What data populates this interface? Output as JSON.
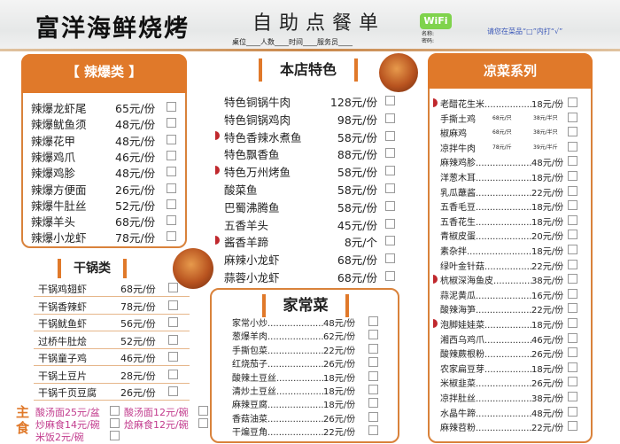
{
  "header": {
    "restaurant": "富洋海鲜烧烤",
    "subtitle": "自助点餐单",
    "form": "桌位____人数____时间____服务员____",
    "wifi": "WiFi",
    "wifi_name": "名称:",
    "wifi_password": "密码:",
    "hint": "请您在菜品“□”内打“√”"
  },
  "spicy": {
    "title": "【 辣爆类 】",
    "items": [
      {
        "name": "辣爆龙虾尾",
        "price": "65元/份"
      },
      {
        "name": "辣爆鱿鱼须",
        "price": "48元/份"
      },
      {
        "name": "辣爆花甲",
        "price": "48元/份"
      },
      {
        "name": "辣爆鸡爪",
        "price": "46元/份"
      },
      {
        "name": "辣爆鸡胗",
        "price": "48元/份"
      },
      {
        "name": "辣爆方便面",
        "price": "26元/份"
      },
      {
        "name": "辣爆牛肚丝",
        "price": "52元/份"
      },
      {
        "name": "辣爆羊头",
        "price": "68元/份"
      },
      {
        "name": "辣爆小龙虾",
        "price": "78元/份"
      }
    ]
  },
  "drypot": {
    "title": "干锅类",
    "items": [
      {
        "name": "干锅鸡翅虾",
        "price": "68元/份"
      },
      {
        "name": "干锅香辣虾",
        "price": "78元/份"
      },
      {
        "name": "干锅鱿鱼虾",
        "price": "56元/份"
      },
      {
        "name": "过桥牛肚烩",
        "price": "52元/份"
      },
      {
        "name": "干锅童子鸡",
        "price": "46元/份"
      },
      {
        "name": "干锅土豆片",
        "price": "28元/份"
      },
      {
        "name": "干锅千页豆腐",
        "price": "26元/份"
      }
    ]
  },
  "staple": {
    "title": "主食",
    "items": [
      "酸汤面25元/盆",
      "酸汤面12元/碗",
      "炒麻食14元/碗",
      "烩麻食12元/碗",
      "米饭2元/碗"
    ]
  },
  "special": {
    "title": "本店特色",
    "items": [
      {
        "name": "特色铜锅牛肉",
        "price": "128元/份",
        "spicy": false
      },
      {
        "name": "特色铜锅鸡肉",
        "price": "98元/份",
        "spicy": false
      },
      {
        "name": "特色香辣水煮鱼",
        "price": "58元/份",
        "spicy": true
      },
      {
        "name": "特色飘香鱼",
        "price": "88元/份",
        "spicy": false
      },
      {
        "name": "特色万州烤鱼",
        "price": "58元/份",
        "spicy": true
      },
      {
        "name": "酸菜鱼",
        "price": "58元/份",
        "spicy": false
      },
      {
        "name": "巴蜀沸腾鱼",
        "price": "58元/份",
        "spicy": false
      },
      {
        "name": "五香羊头",
        "price": "45元/份",
        "spicy": false
      },
      {
        "name": "酱香羊蹄",
        "price": "8元/个",
        "spicy": true
      },
      {
        "name": "麻辣小龙虾",
        "price": "68元/份",
        "spicy": false
      },
      {
        "name": "蒜蓉小龙虾",
        "price": "68元/份",
        "spicy": false
      }
    ]
  },
  "home": {
    "title": "家常菜",
    "items": [
      {
        "name": "家常小炒",
        "price": "48元/份"
      },
      {
        "name": "葱爆羊肉",
        "price": "62元/份"
      },
      {
        "name": "手撕包菜",
        "price": "22元/份"
      },
      {
        "name": "红烧茄子",
        "price": "26元/份"
      },
      {
        "name": "酸辣土豆丝",
        "price": "18元/份"
      },
      {
        "name": "清炒土豆丝",
        "price": "18元/份"
      },
      {
        "name": "麻辣豆腐",
        "price": "18元/份"
      },
      {
        "name": "香菇油菜",
        "price": "26元/份"
      },
      {
        "name": "干煸豆角",
        "price": "22元/份"
      }
    ]
  },
  "cold": {
    "title": "凉菜系列",
    "items": [
      {
        "name": "老醋花生米",
        "price": "18元/份",
        "spicy": true
      },
      {
        "name": "手撕土鸡",
        "price": "68元/只",
        "price2": "38元/半只"
      },
      {
        "name": "椒麻鸡",
        "price": "68元/只",
        "price2": "38元/半只"
      },
      {
        "name": "凉拌牛肉",
        "price": "78元/斤",
        "price2": "39元/半斤"
      },
      {
        "name": "麻辣鸡胗",
        "price": "48元/份"
      },
      {
        "name": "洋葱木耳",
        "price": "18元/份"
      },
      {
        "name": "乳瓜蘸酱",
        "price": "22元/份"
      },
      {
        "name": "五香毛豆",
        "price": "18元/份"
      },
      {
        "name": "五香花生",
        "price": "18元/份"
      },
      {
        "name": "青椒皮蛋",
        "price": "20元/份"
      },
      {
        "name": "素杂拌",
        "price": "18元/份"
      },
      {
        "name": "绿叶金针菇",
        "price": "22元/份"
      },
      {
        "name": "杭椒深海鱼皮",
        "price": "38元/份",
        "spicy": true
      },
      {
        "name": "蒜泥黄瓜",
        "price": "16元/份"
      },
      {
        "name": "酸辣海笋",
        "price": "22元/份"
      },
      {
        "name": "泡脚娃娃菜",
        "price": "18元/份",
        "spicy": true
      },
      {
        "name": "湘西乌鸡爪",
        "price": "46元/份"
      },
      {
        "name": "酸辣蕨根粉",
        "price": "26元/份"
      },
      {
        "name": "农家扁豆芽",
        "price": "18元/份"
      },
      {
        "name": "米椒韭菜",
        "price": "26元/份"
      },
      {
        "name": "凉拌肚丝",
        "price": "38元/份"
      },
      {
        "name": "水晶牛蹄",
        "price": "48元/份"
      },
      {
        "name": "麻辣苕粉",
        "price": "22元/份"
      }
    ]
  },
  "colors": {
    "accent": "#e0792a",
    "border": "#d9823b",
    "staple": "#c23b8d",
    "hint": "#3a57b8"
  }
}
